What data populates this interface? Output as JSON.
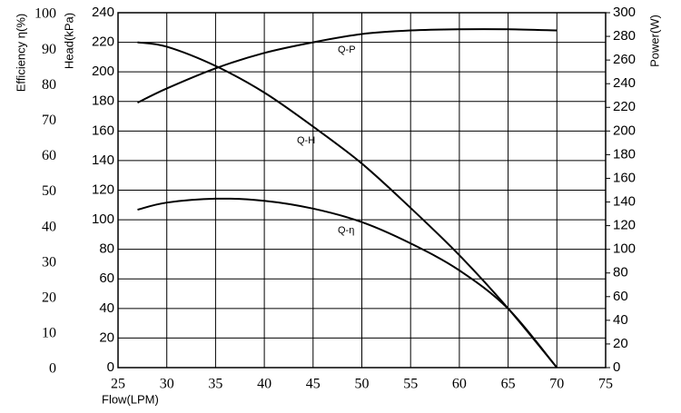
{
  "chart_data": {
    "type": "line",
    "x_label": "Flow(LPM)",
    "y_label": "Head(kPa)",
    "y2_label": "Power(W)",
    "y3_label": "Efficiency η(%)",
    "x": [
      27,
      30,
      35,
      40,
      45,
      50,
      55,
      60,
      65,
      70
    ],
    "series": [
      {
        "name": "Q-H",
        "color": "#000000",
        "axis": "y",
        "values": [
          220,
          217,
          204,
          186,
          163,
          138,
          108,
          76,
          40,
          0
        ]
      },
      {
        "name": "Q-P",
        "color": "#000000",
        "axis": "y2",
        "values": [
          224,
          236,
          253,
          266,
          275,
          282,
          285,
          286,
          286,
          285
        ]
      },
      {
        "name": "Q-η",
        "color": "#000000",
        "axis": "y3",
        "values": [
          44.5,
          46.5,
          47.6,
          47,
          44.8,
          41,
          35,
          27.4,
          16.6,
          0
        ]
      }
    ],
    "xlim": [
      25,
      75
    ],
    "xticks": [
      25,
      30,
      35,
      40,
      45,
      50,
      55,
      60,
      65,
      70,
      75
    ],
    "ylim": [
      0,
      240
    ],
    "yticks": [
      0,
      20,
      40,
      60,
      80,
      100,
      120,
      140,
      160,
      180,
      200,
      220,
      240
    ],
    "y2lim": [
      0,
      300
    ],
    "y2ticks": [
      0,
      20,
      40,
      60,
      80,
      100,
      120,
      140,
      160,
      180,
      200,
      220,
      240,
      260,
      280,
      300
    ],
    "y3lim": [
      0,
      100
    ],
    "y3ticks": [
      0,
      10,
      20,
      30,
      40,
      50,
      60,
      70,
      80,
      90,
      100
    ],
    "grid": true
  }
}
